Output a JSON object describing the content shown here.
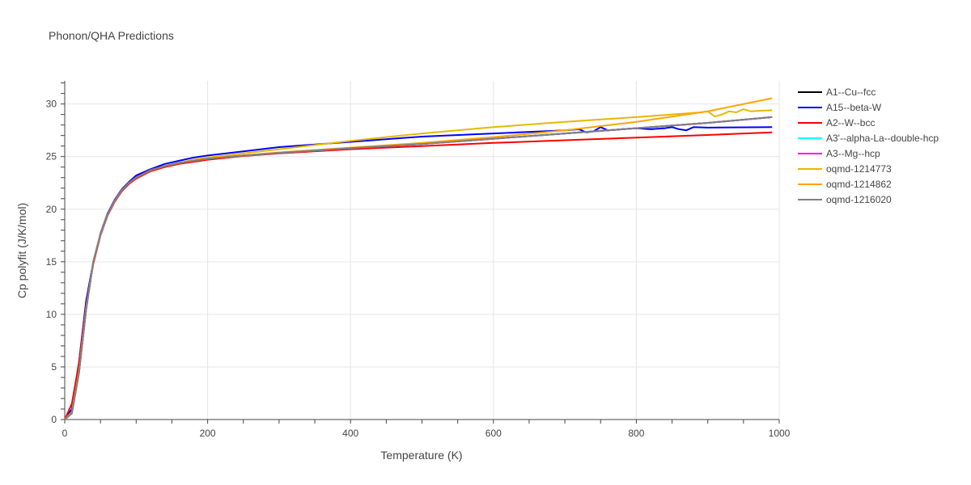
{
  "chart_data": {
    "type": "line",
    "title": "Phonon/QHA Predictions",
    "xlabel": "Temperature (K)",
    "ylabel": "Cp polyfit (J/K/mol)",
    "xlim": [
      0,
      1000
    ],
    "ylim": [
      0,
      32.2
    ],
    "x_ticks": [
      0,
      200,
      400,
      600,
      800,
      1000
    ],
    "y_ticks": [
      0,
      5,
      10,
      15,
      20,
      25,
      30
    ],
    "grid": true,
    "legend_position": "right",
    "series": [
      {
        "name": "A1--Cu--fcc",
        "color": "#000000",
        "points": [
          [
            0,
            0
          ],
          [
            10,
            0.6
          ],
          [
            20,
            4.5
          ],
          [
            30,
            10.5
          ],
          [
            40,
            15
          ],
          [
            50,
            17.6
          ],
          [
            60,
            19.5
          ],
          [
            70,
            20.8
          ],
          [
            80,
            21.8
          ],
          [
            90,
            22.5
          ],
          [
            100,
            23
          ],
          [
            120,
            23.7
          ],
          [
            140,
            24.1
          ],
          [
            160,
            24.4
          ],
          [
            180,
            24.6
          ],
          [
            200,
            24.8
          ],
          [
            250,
            25.1
          ],
          [
            300,
            25.35
          ],
          [
            400,
            25.8
          ],
          [
            500,
            26.2
          ],
          [
            600,
            26.7
          ],
          [
            700,
            27.2
          ],
          [
            800,
            27.7
          ],
          [
            900,
            28.2
          ],
          [
            990,
            28.75
          ]
        ]
      },
      {
        "name": "A15--beta-W",
        "color": "#0000ff",
        "points": [
          [
            0,
            0
          ],
          [
            10,
            1
          ],
          [
            20,
            5.5
          ],
          [
            30,
            11.3
          ],
          [
            40,
            15
          ],
          [
            50,
            17.7
          ],
          [
            60,
            19.6
          ],
          [
            70,
            20.9
          ],
          [
            80,
            21.9
          ],
          [
            90,
            22.6
          ],
          [
            100,
            23.2
          ],
          [
            120,
            23.8
          ],
          [
            140,
            24.3
          ],
          [
            160,
            24.6
          ],
          [
            180,
            24.9
          ],
          [
            200,
            25.1
          ],
          [
            250,
            25.5
          ],
          [
            300,
            25.9
          ],
          [
            400,
            26.4
          ],
          [
            500,
            26.9
          ],
          [
            600,
            27.2
          ],
          [
            700,
            27.5
          ],
          [
            720,
            27.6
          ],
          [
            730,
            27.3
          ],
          [
            740,
            27.4
          ],
          [
            750,
            27.8
          ],
          [
            760,
            27.5
          ],
          [
            780,
            27.6
          ],
          [
            800,
            27.7
          ],
          [
            820,
            27.6
          ],
          [
            840,
            27.7
          ],
          [
            850,
            27.8
          ],
          [
            860,
            27.6
          ],
          [
            870,
            27.5
          ],
          [
            880,
            27.8
          ],
          [
            900,
            27.75
          ],
          [
            990,
            27.8
          ]
        ]
      },
      {
        "name": "A2--W--bcc",
        "color": "#ff0000",
        "points": [
          [
            0,
            0
          ],
          [
            10,
            1.5
          ],
          [
            20,
            5.4
          ],
          [
            30,
            10.8
          ],
          [
            40,
            14.8
          ],
          [
            50,
            17.5
          ],
          [
            60,
            19.4
          ],
          [
            70,
            20.7
          ],
          [
            80,
            21.7
          ],
          [
            90,
            22.4
          ],
          [
            100,
            22.9
          ],
          [
            120,
            23.6
          ],
          [
            140,
            24
          ],
          [
            160,
            24.3
          ],
          [
            180,
            24.5
          ],
          [
            200,
            24.7
          ],
          [
            250,
            25.05
          ],
          [
            300,
            25.3
          ],
          [
            400,
            25.7
          ],
          [
            500,
            26
          ],
          [
            600,
            26.3
          ],
          [
            700,
            26.55
          ],
          [
            800,
            26.8
          ],
          [
            900,
            27.05
          ],
          [
            990,
            27.3
          ]
        ]
      },
      {
        "name": "A3'--alpha-La--double-hcp",
        "color": "#00ffff",
        "points": [
          [
            0,
            0
          ],
          [
            10,
            0.6
          ],
          [
            20,
            4.5
          ],
          [
            30,
            10.5
          ],
          [
            40,
            15
          ],
          [
            50,
            17.6
          ],
          [
            60,
            19.5
          ],
          [
            70,
            20.8
          ],
          [
            80,
            21.8
          ],
          [
            90,
            22.5
          ],
          [
            100,
            23
          ],
          [
            120,
            23.7
          ],
          [
            140,
            24.1
          ],
          [
            160,
            24.4
          ],
          [
            180,
            24.6
          ],
          [
            200,
            24.8
          ],
          [
            250,
            25.1
          ],
          [
            300,
            25.35
          ],
          [
            400,
            25.8
          ],
          [
            500,
            26.2
          ],
          [
            600,
            26.7
          ],
          [
            700,
            27.2
          ],
          [
            800,
            27.7
          ],
          [
            900,
            28.2
          ],
          [
            990,
            28.75
          ]
        ]
      },
      {
        "name": "A3--Mg--hcp",
        "color": "#ff00ff",
        "points": [
          [
            0,
            0
          ],
          [
            10,
            0.6
          ],
          [
            20,
            4.5
          ],
          [
            30,
            10.5
          ],
          [
            40,
            15
          ],
          [
            50,
            17.6
          ],
          [
            60,
            19.5
          ],
          [
            70,
            20.8
          ],
          [
            80,
            21.8
          ],
          [
            90,
            22.5
          ],
          [
            100,
            23
          ],
          [
            120,
            23.7
          ],
          [
            140,
            24.1
          ],
          [
            160,
            24.4
          ],
          [
            180,
            24.6
          ],
          [
            200,
            24.8
          ],
          [
            250,
            25.1
          ],
          [
            300,
            25.35
          ],
          [
            400,
            25.8
          ],
          [
            500,
            26.2
          ],
          [
            600,
            26.7
          ],
          [
            700,
            27.2
          ],
          [
            800,
            27.7
          ],
          [
            900,
            28.2
          ],
          [
            990,
            28.75
          ]
        ]
      },
      {
        "name": "oqmd-1214773",
        "color": "#e6b800",
        "points": [
          [
            0,
            0
          ],
          [
            10,
            0.7
          ],
          [
            20,
            4.6
          ],
          [
            30,
            10.6
          ],
          [
            40,
            15
          ],
          [
            50,
            17.6
          ],
          [
            60,
            19.5
          ],
          [
            70,
            20.8
          ],
          [
            80,
            21.8
          ],
          [
            90,
            22.5
          ],
          [
            100,
            23
          ],
          [
            120,
            23.7
          ],
          [
            140,
            24.1
          ],
          [
            160,
            24.4
          ],
          [
            180,
            24.7
          ],
          [
            200,
            24.9
          ],
          [
            250,
            25.3
          ],
          [
            300,
            25.7
          ],
          [
            400,
            26.5
          ],
          [
            500,
            27.2
          ],
          [
            600,
            27.8
          ],
          [
            700,
            28.3
          ],
          [
            800,
            28.75
          ],
          [
            890,
            29.2
          ],
          [
            900,
            29.3
          ],
          [
            910,
            28.8
          ],
          [
            920,
            29
          ],
          [
            930,
            29.3
          ],
          [
            940,
            29.2
          ],
          [
            950,
            29.5
          ],
          [
            960,
            29.3
          ],
          [
            970,
            29.35
          ],
          [
            990,
            29.4
          ]
        ]
      },
      {
        "name": "oqmd-1214862",
        "color": "#ffa500",
        "points": [
          [
            0,
            0
          ],
          [
            10,
            0.7
          ],
          [
            20,
            4.6
          ],
          [
            30,
            10.6
          ],
          [
            40,
            15
          ],
          [
            50,
            17.6
          ],
          [
            60,
            19.5
          ],
          [
            70,
            20.8
          ],
          [
            80,
            21.8
          ],
          [
            90,
            22.5
          ],
          [
            100,
            23
          ],
          [
            120,
            23.7
          ],
          [
            140,
            24.1
          ],
          [
            160,
            24.4
          ],
          [
            180,
            24.6
          ],
          [
            200,
            24.8
          ],
          [
            250,
            25.1
          ],
          [
            300,
            25.4
          ],
          [
            400,
            25.85
          ],
          [
            500,
            26.3
          ],
          [
            600,
            26.85
          ],
          [
            700,
            27.5
          ],
          [
            800,
            28.3
          ],
          [
            900,
            29.3
          ],
          [
            990,
            30.55
          ]
        ]
      },
      {
        "name": "oqmd-1216020",
        "color": "#808080",
        "points": [
          [
            0,
            0
          ],
          [
            10,
            0.6
          ],
          [
            20,
            4.5
          ],
          [
            30,
            10.5
          ],
          [
            40,
            15
          ],
          [
            50,
            17.6
          ],
          [
            60,
            19.5
          ],
          [
            70,
            20.8
          ],
          [
            80,
            21.8
          ],
          [
            90,
            22.5
          ],
          [
            100,
            23
          ],
          [
            120,
            23.7
          ],
          [
            140,
            24.1
          ],
          [
            160,
            24.4
          ],
          [
            180,
            24.6
          ],
          [
            200,
            24.8
          ],
          [
            250,
            25.1
          ],
          [
            300,
            25.35
          ],
          [
            400,
            25.8
          ],
          [
            500,
            26.2
          ],
          [
            600,
            26.7
          ],
          [
            700,
            27.2
          ],
          [
            800,
            27.7
          ],
          [
            900,
            28.2
          ],
          [
            990,
            28.75
          ]
        ]
      }
    ]
  }
}
